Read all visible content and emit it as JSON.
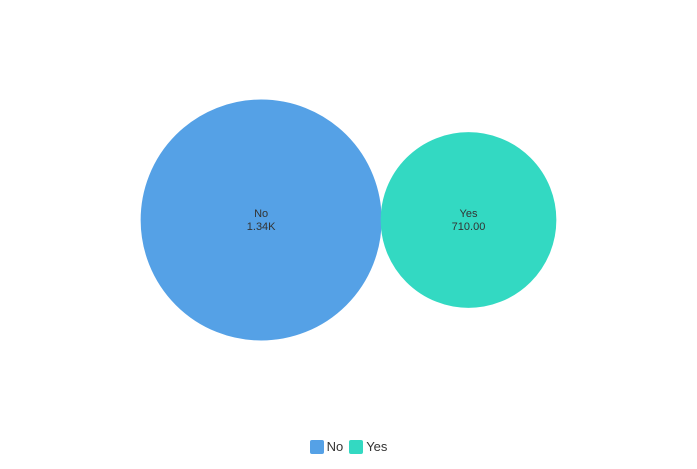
{
  "chart_data": {
    "type": "bubble",
    "title": "",
    "series": [
      {
        "name": "No",
        "value": 1340,
        "display_value": "1.34K",
        "color": "#55a1e6"
      },
      {
        "name": "Yes",
        "value": 710,
        "display_value": "710.00",
        "color": "#33d9c2"
      }
    ],
    "legend_position": "bottom-center"
  },
  "legend": {
    "items": [
      {
        "label": "No",
        "color": "#55a1e6"
      },
      {
        "label": "Yes",
        "color": "#33d9c2"
      }
    ]
  }
}
